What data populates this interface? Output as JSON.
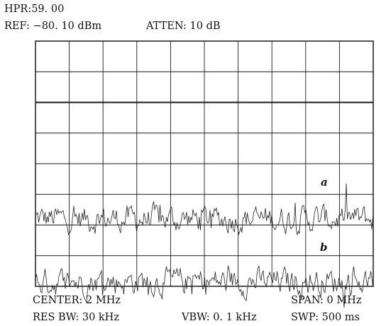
{
  "header": {
    "hpr": "HPR:59. 00",
    "ref": "REF: −80. 10 dBm",
    "atten": "ATTEN: 10 dB"
  },
  "footer": {
    "center": "CENTER: 2 MHz",
    "span": "SPAN: 0 MHz",
    "res_bw": "RES BW: 30 kHz",
    "vbw": "VBW: 0. 1 kHz",
    "swp": "SWP: 500 ms"
  },
  "chart_data": {
    "type": "line",
    "title": "",
    "xlabel": "",
    "ylabel": "",
    "divisions": {
      "x": 10,
      "y": 8
    },
    "ylim": [
      0,
      8
    ],
    "xlim": [
      0,
      10
    ],
    "grid": true,
    "series": [
      {
        "name": "a",
        "level": 2.2,
        "noise": 0.35
      },
      {
        "name": "b",
        "level": 0.15,
        "noise": 0.35
      }
    ]
  }
}
